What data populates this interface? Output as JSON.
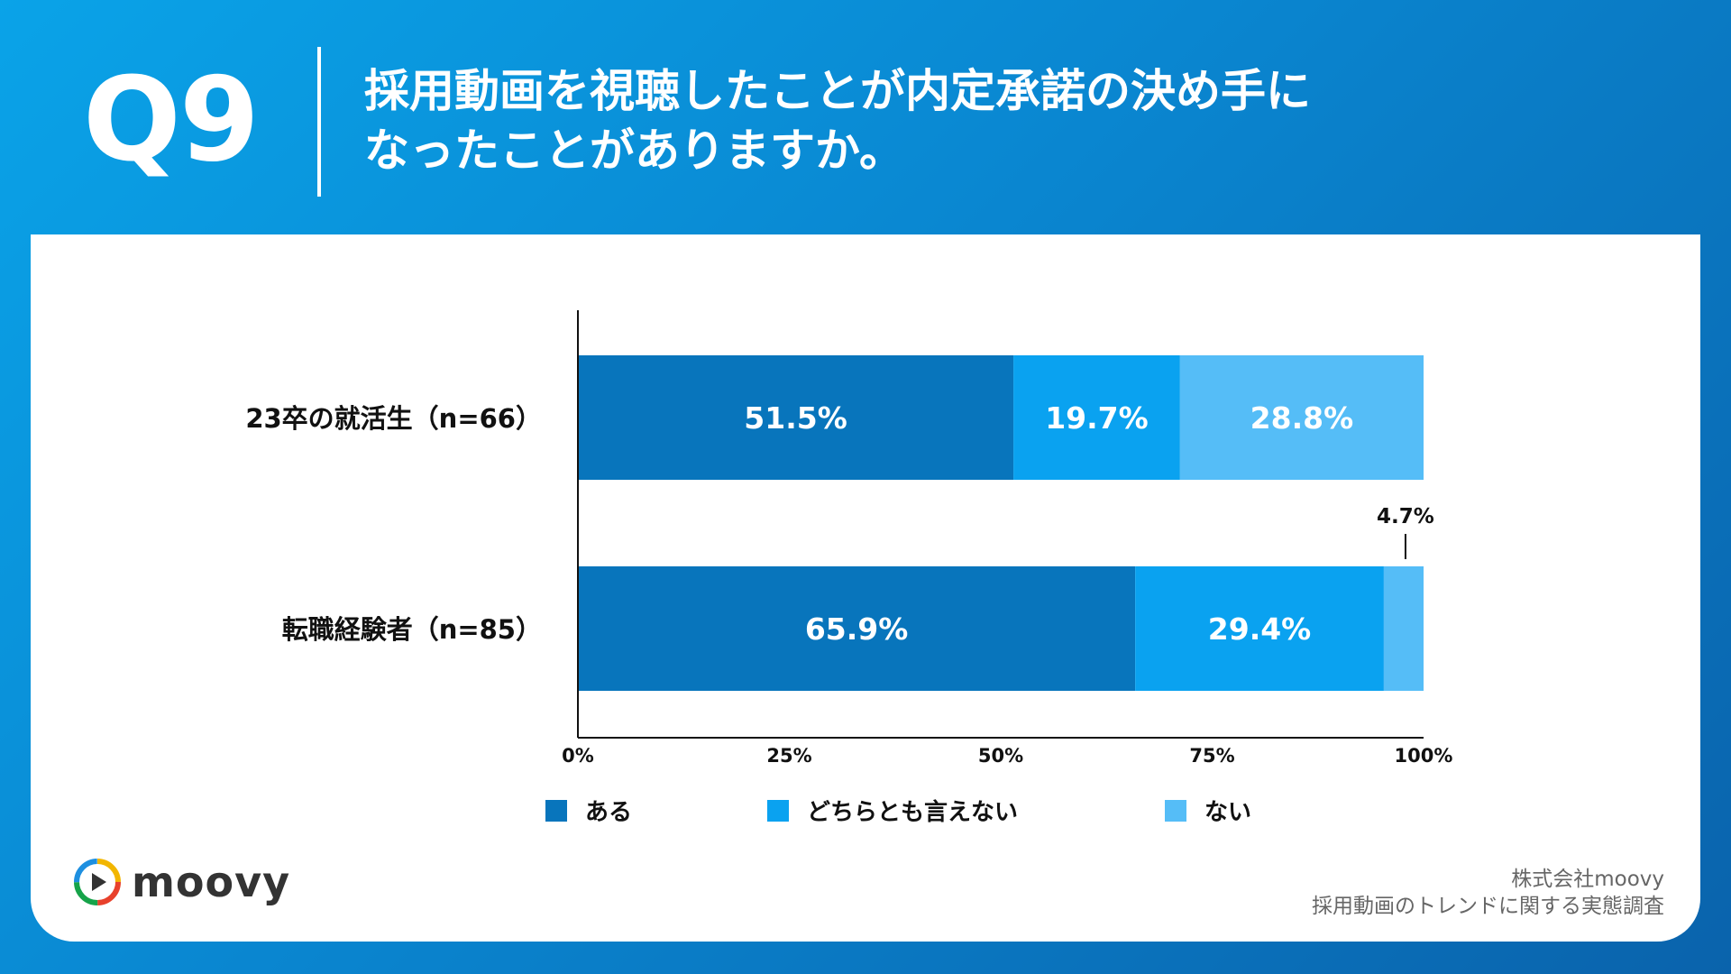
{
  "header": {
    "question_number": "Q9",
    "question_line1": "採用動画を視聴したことが内定承諾の決め手に",
    "question_line2": "なったことがありますか。"
  },
  "chart_data": {
    "type": "bar",
    "orientation": "horizontal",
    "stacked": true,
    "categories": [
      "23卒の就活生（n=66）",
      "転職経験者（n=85）"
    ],
    "series": [
      {
        "name": "ある",
        "values": [
          51.5,
          65.9
        ],
        "labels": [
          "51.5%",
          "65.9%"
        ],
        "color": "#0875bc"
      },
      {
        "name": "どちらとも言えない",
        "values": [
          19.7,
          29.4
        ],
        "labels": [
          "19.7%",
          "29.4%"
        ],
        "color": "#0aa2f0"
      },
      {
        "name": "ない",
        "values": [
          28.8,
          4.7
        ],
        "labels": [
          "28.8%",
          "4.7%"
        ],
        "color": "#55bdf7"
      }
    ],
    "x_ticks": [
      "0%",
      "25%",
      "50%",
      "75%",
      "100%"
    ],
    "xlim": [
      0,
      100
    ],
    "legend_position": "bottom"
  },
  "logo": {
    "text": "moovy",
    "icon": "play-circle-icon"
  },
  "source": {
    "line1": "株式会社moovy",
    "line2": "採用動画のトレンドに関する実態調査"
  }
}
